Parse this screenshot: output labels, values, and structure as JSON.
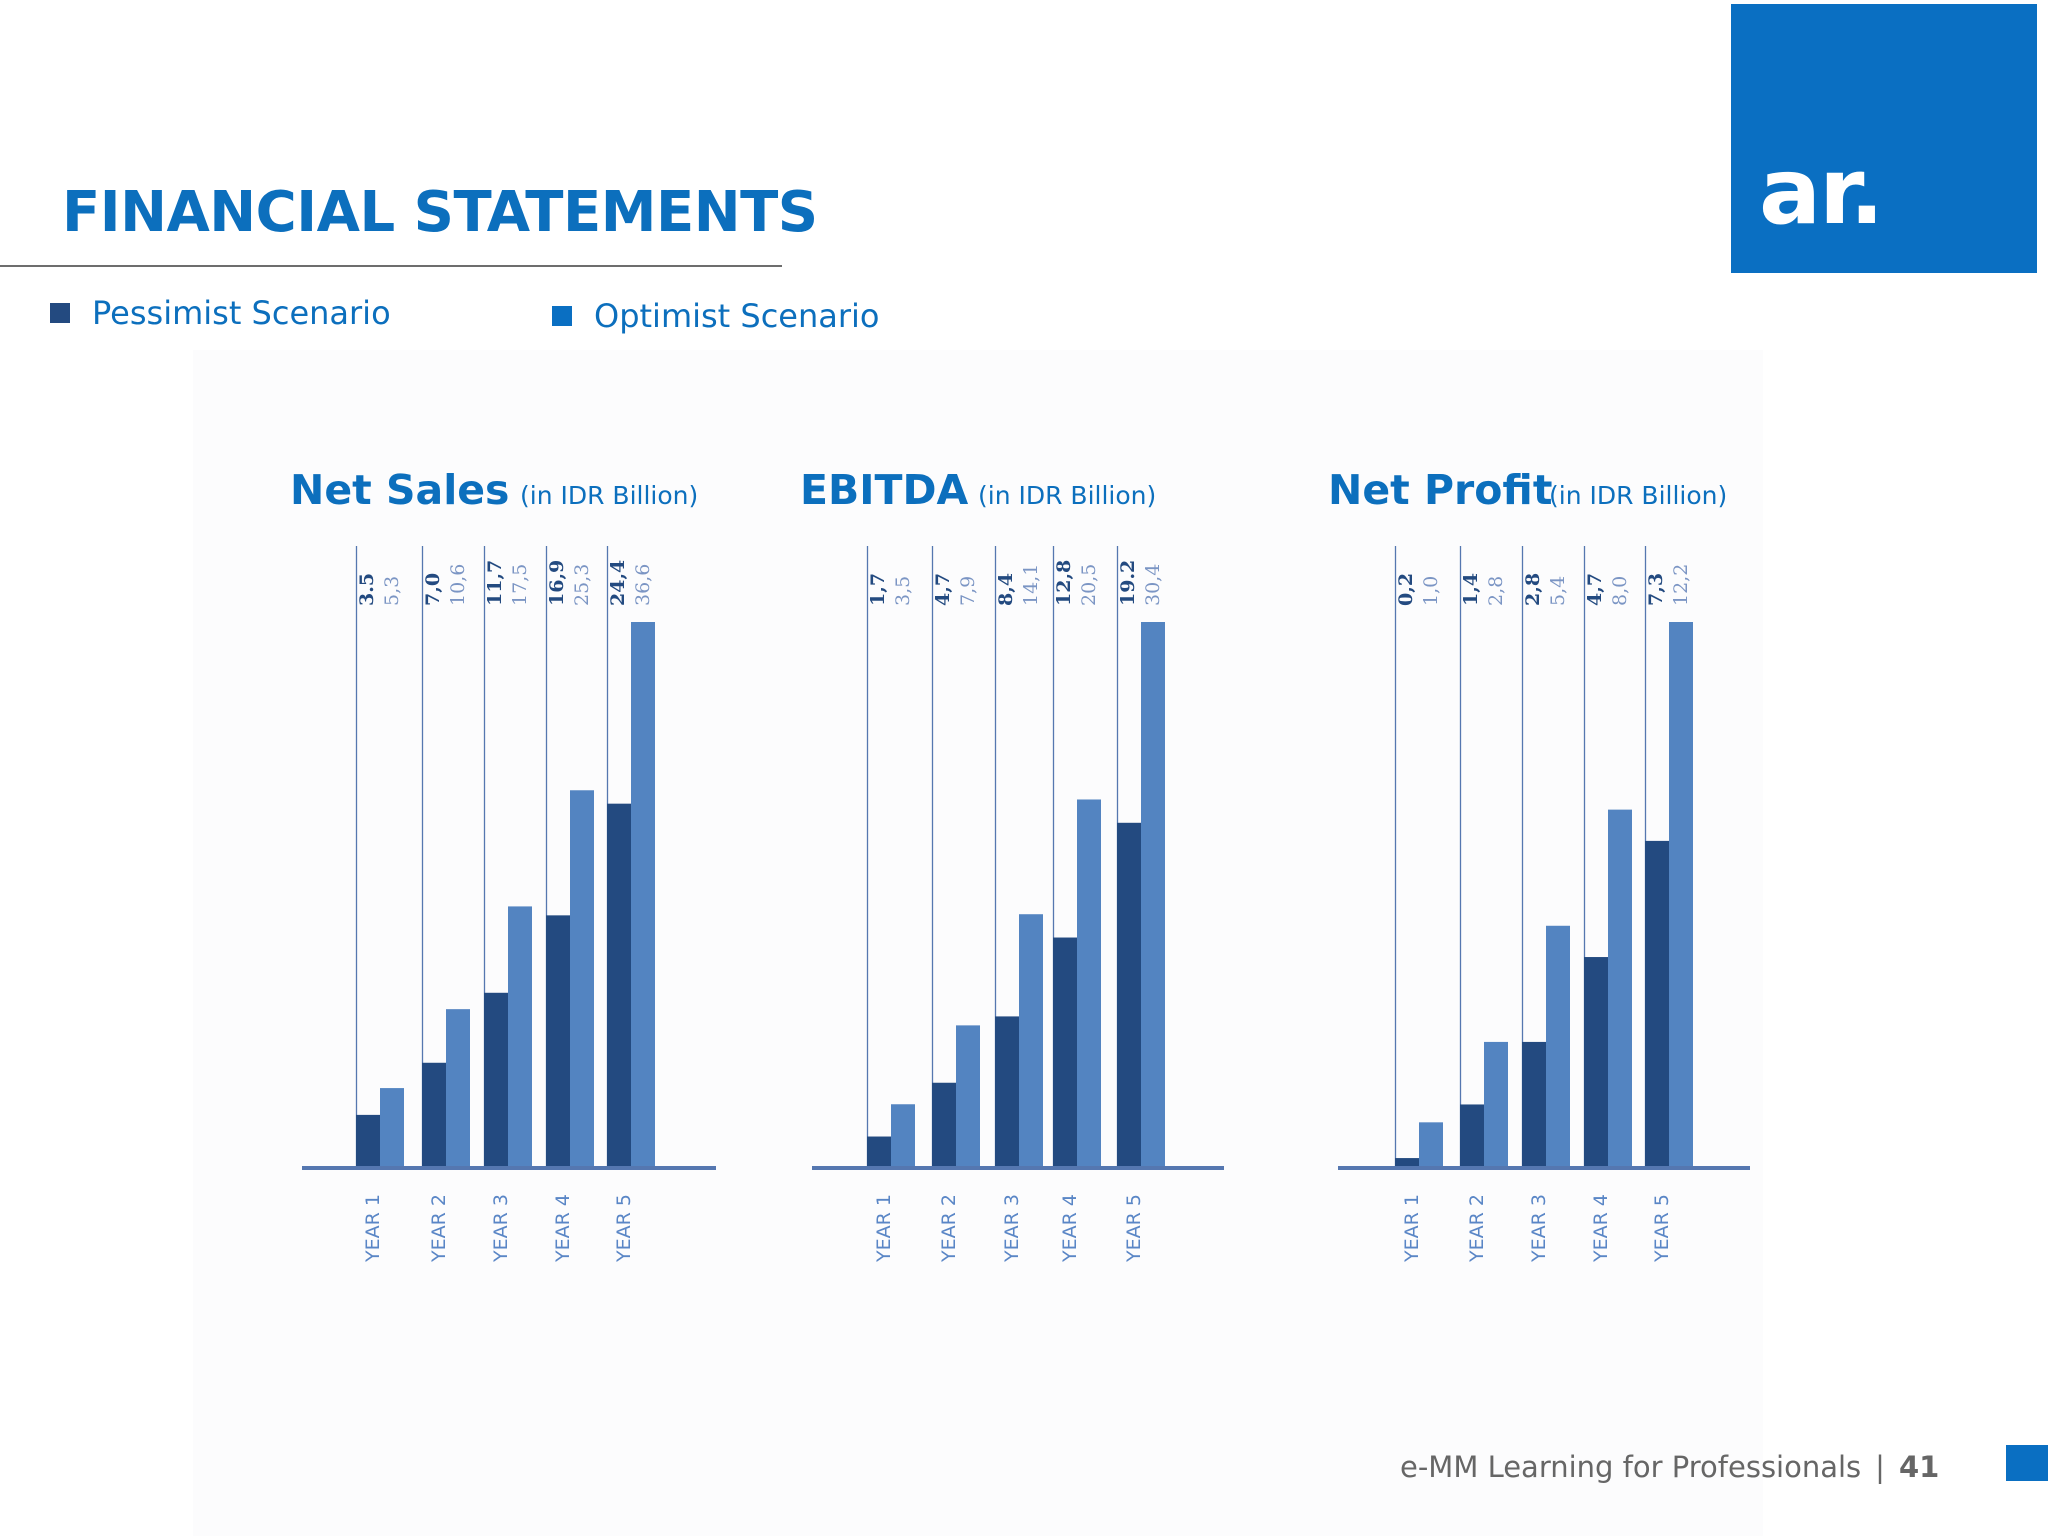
{
  "page": {
    "title": "FINANCIAL STATEMENTS",
    "logo_text": "ar.",
    "footer_text": "e-MM Learning for Professionals",
    "footer_separator": "|",
    "page_number": "41"
  },
  "legend": [
    {
      "label": "Pessimist Scenario",
      "color": "#234a80"
    },
    {
      "label": "Optimist Scenario",
      "color": "#0a6fc2"
    }
  ],
  "colors": {
    "title": "#0c6fbd",
    "logo_background": "#0a6fc2",
    "pessimist_bar": "#234a80",
    "optimist_bar": "#5384c1",
    "axis": "#5577b0"
  },
  "chart_data": [
    {
      "type": "bar",
      "title": "Net Sales",
      "subtitle": "(in IDR Billion)",
      "categories": [
        "YEAR 1",
        "YEAR 2",
        "YEAR 3",
        "YEAR 4",
        "YEAR 5"
      ],
      "series": [
        {
          "name": "Pessimist Scenario",
          "values": [
            3.5,
            7.0,
            11.7,
            16.9,
            24.4
          ],
          "labels": [
            "3.5",
            "7,0",
            "11,7",
            "16,9",
            "24,4"
          ]
        },
        {
          "name": "Optimist Scenario",
          "values": [
            5.3,
            10.6,
            17.5,
            25.3,
            36.6
          ],
          "labels": [
            "5,3",
            "10,6",
            "17,5",
            "25,3",
            "36,6"
          ]
        }
      ],
      "xlabel": "",
      "ylabel": "",
      "ylim": [
        0,
        36.6
      ],
      "grid": false
    },
    {
      "type": "bar",
      "title": "EBITDA",
      "subtitle": "(in IDR Billion)",
      "categories": [
        "YEAR 1",
        "YEAR 2",
        "YEAR 3",
        "YEAR 4",
        "YEAR 5"
      ],
      "series": [
        {
          "name": "Pessimist Scenario",
          "values": [
            1.7,
            4.7,
            8.4,
            12.8,
            19.2
          ],
          "labels": [
            "1,7",
            "4,7",
            "8,4",
            "12,8",
            "19.2"
          ]
        },
        {
          "name": "Optimist Scenario",
          "values": [
            3.5,
            7.9,
            14.1,
            20.5,
            30.4
          ],
          "labels": [
            "3,5",
            "7,9",
            "14,1",
            "20,5",
            "30,4"
          ]
        }
      ],
      "xlabel": "",
      "ylabel": "",
      "ylim": [
        0,
        30.4
      ],
      "grid": false
    },
    {
      "type": "bar",
      "title": "Net Profit",
      "subtitle": "(in IDR Billion)",
      "categories": [
        "YEAR 1",
        "YEAR 2",
        "YEAR 3",
        "YEAR 4",
        "YEAR 5"
      ],
      "series": [
        {
          "name": "Pessimist Scenario",
          "values": [
            0.2,
            1.4,
            2.8,
            4.7,
            7.3
          ],
          "labels": [
            "0,2",
            "1,4",
            "2,8",
            "4,7",
            "7,3"
          ]
        },
        {
          "name": "Optimist Scenario",
          "values": [
            1.0,
            2.8,
            5.4,
            8.0,
            12.2
          ],
          "labels": [
            "1,0",
            "2,8",
            "5,4",
            "8,0",
            "12,2"
          ]
        }
      ],
      "xlabel": "",
      "ylabel": "",
      "ylim": [
        0,
        12.2
      ],
      "grid": false
    }
  ]
}
